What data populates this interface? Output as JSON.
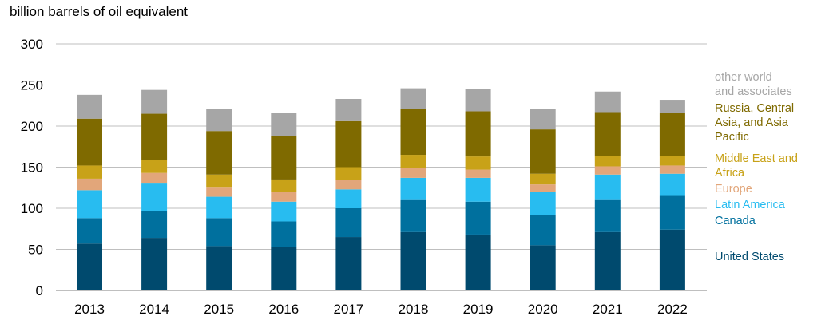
{
  "chart_data": {
    "type": "bar",
    "stacked": true,
    "title": "",
    "xlabel": "",
    "ylabel": "billion barrels of oil equivalent",
    "ylim": [
      0,
      300
    ],
    "yticks": [
      0,
      50,
      100,
      150,
      200,
      250,
      300
    ],
    "categories": [
      "2013",
      "2014",
      "2015",
      "2016",
      "2017",
      "2018",
      "2019",
      "2020",
      "2021",
      "2022"
    ],
    "series": [
      {
        "name": "United States",
        "color": "#004a6e",
        "values": [
          57,
          64,
          54,
          53,
          65,
          71,
          68,
          55,
          71,
          74
        ]
      },
      {
        "name": "Canada",
        "color": "#00709e",
        "values": [
          31,
          33,
          34,
          31,
          35,
          40,
          40,
          37,
          40,
          42
        ]
      },
      {
        "name": "Latin America",
        "color": "#28bcf0",
        "values": [
          34,
          34,
          26,
          24,
          23,
          26,
          29,
          28,
          30,
          26
        ]
      },
      {
        "name": "Europe",
        "color": "#e2a67a",
        "values": [
          14,
          12,
          12,
          12,
          11,
          12,
          10,
          9,
          10,
          10
        ]
      },
      {
        "name": "Middle East and Africa",
        "color": "#c8a218",
        "values": [
          16,
          16,
          15,
          15,
          16,
          16,
          16,
          13,
          13,
          12
        ]
      },
      {
        "name": "Russia, Central Asia, and Asia Pacific",
        "color": "#7f6a00",
        "values": [
          57,
          56,
          53,
          53,
          56,
          56,
          55,
          54,
          53,
          52
        ]
      },
      {
        "name": "other world and associates",
        "color": "#a6a6a6",
        "values": [
          29,
          29,
          27,
          28,
          27,
          25,
          27,
          25,
          25,
          16
        ]
      }
    ],
    "grid": true,
    "legend": "right"
  },
  "legend": [
    {
      "lines": [
        "other world",
        "and associates"
      ],
      "color": "#a6a6a6"
    },
    {
      "lines": [
        "Russia, Central",
        "Asia, and Asia",
        "Pacific"
      ],
      "color": "#7f6a00"
    },
    {
      "lines": [
        "Middle East and",
        "Africa"
      ],
      "color": "#c8a218"
    },
    {
      "lines": [
        "Europe"
      ],
      "color": "#e2a67a"
    },
    {
      "lines": [
        "Latin America"
      ],
      "color": "#28bcf0"
    },
    {
      "lines": [
        "Canada"
      ],
      "color": "#00709e"
    },
    {
      "lines": [
        "United States"
      ],
      "color": "#004a6e"
    }
  ]
}
